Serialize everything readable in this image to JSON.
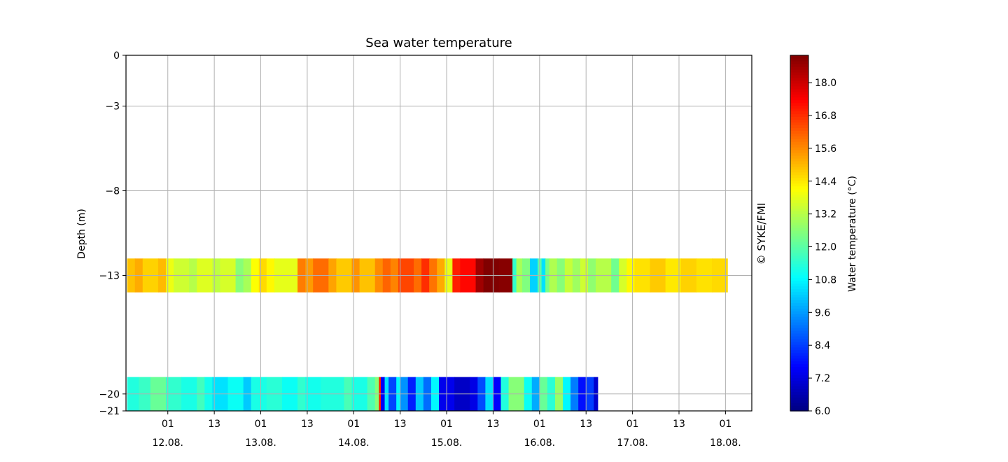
{
  "chart_data": {
    "type": "heatmap",
    "title": "Sea water temperature",
    "ylabel": "Depth (m)",
    "credit": "© SYKE/FMI",
    "colorbar": {
      "label": "Water temperature (°C)",
      "range": [
        6.0,
        19.0
      ],
      "ticks": [
        "6.0",
        "7.2",
        "8.4",
        "9.6",
        "10.8",
        "12.0",
        "13.2",
        "14.4",
        "15.6",
        "16.8",
        "18.0"
      ],
      "colormap": "jet"
    },
    "yticks": [
      0,
      -3,
      -8,
      -13,
      -20,
      -21
    ],
    "yticks_labels": [
      "0",
      "−3",
      "−8",
      "−13",
      "−20",
      "−21"
    ],
    "ylim": [
      -21,
      0
    ],
    "xlim_hours": [
      -9.8,
      151.8
    ],
    "xticks": [
      {
        "hour": 1,
        "top": "01",
        "bottom": "12.08."
      },
      {
        "hour": 13,
        "top": "13",
        "bottom": ""
      },
      {
        "hour": 25,
        "top": "01",
        "bottom": "13.08."
      },
      {
        "hour": 37,
        "top": "13",
        "bottom": ""
      },
      {
        "hour": 49,
        "top": "01",
        "bottom": "14.08."
      },
      {
        "hour": 61,
        "top": "13",
        "bottom": ""
      },
      {
        "hour": 73,
        "top": "01",
        "bottom": "15.08."
      },
      {
        "hour": 85,
        "top": "13",
        "bottom": ""
      },
      {
        "hour": 97,
        "top": "01",
        "bottom": "16.08."
      },
      {
        "hour": 109,
        "top": "13",
        "bottom": ""
      },
      {
        "hour": 121,
        "top": "01",
        "bottom": "17.08."
      },
      {
        "hour": 133,
        "top": "13",
        "bottom": ""
      },
      {
        "hour": 145,
        "top": "01",
        "bottom": "18.08."
      },
      {
        "hour": 157,
        "top": "13",
        "bottom": ""
      }
    ],
    "grid": true,
    "bands": [
      {
        "depth_range": [
          -14,
          -12
        ],
        "start_hour": -9.5,
        "segments": [
          {
            "hours": 2,
            "value": 14.9
          },
          {
            "hours": 2,
            "value": 15.2
          },
          {
            "hours": 4,
            "value": 14.7
          },
          {
            "hours": 2,
            "value": 15.0
          },
          {
            "hours": 2,
            "value": 13.9
          },
          {
            "hours": 4,
            "value": 13.5
          },
          {
            "hours": 2,
            "value": 13.2
          },
          {
            "hours": 4,
            "value": 13.7
          },
          {
            "hours": 2,
            "value": 13.3
          },
          {
            "hours": 4,
            "value": 13.6
          },
          {
            "hours": 2,
            "value": 12.6
          },
          {
            "hours": 2,
            "value": 13.0
          },
          {
            "hours": 2,
            "value": 14.1
          },
          {
            "hours": 2,
            "value": 14.6
          },
          {
            "hours": 2,
            "value": 14.2
          },
          {
            "hours": 6,
            "value": 13.8
          },
          {
            "hours": 2,
            "value": 15.8
          },
          {
            "hours": 2,
            "value": 15.4
          },
          {
            "hours": 4,
            "value": 16.0
          },
          {
            "hours": 2,
            "value": 15.3
          },
          {
            "hours": 4,
            "value": 14.8
          },
          {
            "hours": 2,
            "value": 15.5
          },
          {
            "hours": 4,
            "value": 14.9
          },
          {
            "hours": 2,
            "value": 15.6
          },
          {
            "hours": 2,
            "value": 16.1
          },
          {
            "hours": 2,
            "value": 15.7
          },
          {
            "hours": 4,
            "value": 16.5
          },
          {
            "hours": 2,
            "value": 16.0
          },
          {
            "hours": 2,
            "value": 16.8
          },
          {
            "hours": 2,
            "value": 15.9
          },
          {
            "hours": 2,
            "value": 15.2
          },
          {
            "hours": 2,
            "value": 13.8
          },
          {
            "hours": 2,
            "value": 17.0
          },
          {
            "hours": 4,
            "value": 17.3
          },
          {
            "hours": 2,
            "value": 18.6
          },
          {
            "hours": 4,
            "value": 19.0
          },
          {
            "hours": 3.5,
            "value": 18.9
          },
          {
            "hours": 1,
            "value": 11.5
          },
          {
            "hours": 1.5,
            "value": 13.0
          },
          {
            "hours": 2,
            "value": 12.5
          },
          {
            "hours": 2,
            "value": 10.3
          },
          {
            "hours": 1,
            "value": 12.0
          },
          {
            "hours": 1,
            "value": 10.5
          },
          {
            "hours": 1,
            "value": 12.4
          },
          {
            "hours": 2,
            "value": 13.1
          },
          {
            "hours": 2,
            "value": 12.6
          },
          {
            "hours": 2,
            "value": 13.4
          },
          {
            "hours": 2,
            "value": 12.9
          },
          {
            "hours": 2,
            "value": 13.5
          },
          {
            "hours": 2,
            "value": 12.7
          },
          {
            "hours": 4,
            "value": 13.2
          },
          {
            "hours": 2,
            "value": 12.3
          },
          {
            "hours": 2,
            "value": 13.6
          },
          {
            "hours": 2,
            "value": 14.2
          },
          {
            "hours": 4,
            "value": 14.5
          },
          {
            "hours": 4,
            "value": 14.8
          },
          {
            "hours": 4,
            "value": 14.4
          },
          {
            "hours": 4,
            "value": 14.7
          },
          {
            "hours": 4,
            "value": 14.5
          },
          {
            "hours": 4,
            "value": 14.6
          }
        ]
      },
      {
        "depth_range": [
          -21,
          -19
        ],
        "start_hour": -9.5,
        "segments": [
          {
            "hours": 3,
            "value": 11.3
          },
          {
            "hours": 3,
            "value": 11.6
          },
          {
            "hours": 4,
            "value": 12.2
          },
          {
            "hours": 4,
            "value": 11.5
          },
          {
            "hours": 4,
            "value": 11.2
          },
          {
            "hours": 2,
            "value": 11.7
          },
          {
            "hours": 2,
            "value": 11.1
          },
          {
            "hours": 4,
            "value": 10.5
          },
          {
            "hours": 4,
            "value": 11.0
          },
          {
            "hours": 2,
            "value": 10.2
          },
          {
            "hours": 4,
            "value": 11.2
          },
          {
            "hours": 4,
            "value": 11.4
          },
          {
            "hours": 4,
            "value": 11.0
          },
          {
            "hours": 2,
            "value": 11.5
          },
          {
            "hours": 4,
            "value": 11.1
          },
          {
            "hours": 6,
            "value": 11.3
          },
          {
            "hours": 2,
            "value": 11.8
          },
          {
            "hours": 4,
            "value": 11.2
          },
          {
            "hours": 2,
            "value": 11.9
          },
          {
            "hours": 1,
            "value": 12.6
          },
          {
            "hours": 0.5,
            "value": 17.0
          },
          {
            "hours": 1,
            "value": 7.5
          },
          {
            "hours": 1,
            "value": 10.5
          },
          {
            "hours": 2,
            "value": 8.5
          },
          {
            "hours": 1,
            "value": 10.8
          },
          {
            "hours": 2,
            "value": 9.5
          },
          {
            "hours": 2,
            "value": 8.0
          },
          {
            "hours": 2,
            "value": 10.2
          },
          {
            "hours": 2,
            "value": 9.0
          },
          {
            "hours": 2,
            "value": 10.8
          },
          {
            "hours": 4,
            "value": 7.4
          },
          {
            "hours": 4,
            "value": 6.9
          },
          {
            "hours": 2,
            "value": 7.3
          },
          {
            "hours": 2,
            "value": 8.6
          },
          {
            "hours": 2,
            "value": 10.5
          },
          {
            "hours": 2,
            "value": 7.6
          },
          {
            "hours": 2,
            "value": 11.3
          },
          {
            "hours": 4,
            "value": 12.6
          },
          {
            "hours": 2,
            "value": 11.0
          },
          {
            "hours": 2,
            "value": 9.8
          },
          {
            "hours": 2,
            "value": 12.2
          },
          {
            "hours": 2,
            "value": 11.4
          },
          {
            "hours": 2,
            "value": 12.8
          },
          {
            "hours": 2,
            "value": 10.8
          },
          {
            "hours": 2,
            "value": 9.2
          },
          {
            "hours": 2,
            "value": 7.8
          },
          {
            "hours": 2,
            "value": 8.4
          },
          {
            "hours": 1,
            "value": 7.0
          }
        ]
      }
    ]
  }
}
